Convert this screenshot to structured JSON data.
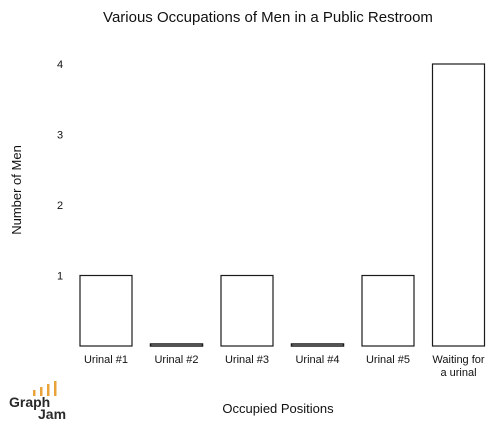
{
  "chart_data": {
    "type": "bar",
    "title": "Various Occupations of Men in a Public Restroom",
    "xlabel": "Occupied Positions",
    "ylabel": "Number of Men",
    "categories": [
      "Urinal #1",
      "Urinal #2",
      "Urinal #3",
      "Urinal #4",
      "Urinal #5",
      "Waiting for a urinal"
    ],
    "category_lines": [
      [
        "Urinal #1"
      ],
      [
        "Urinal #2"
      ],
      [
        "Urinal #3"
      ],
      [
        "Urinal #4"
      ],
      [
        "Urinal #5"
      ],
      [
        "Waiting for",
        "a urinal"
      ]
    ],
    "values": [
      1,
      0,
      1,
      0,
      1,
      4
    ],
    "ylim": [
      0,
      4
    ],
    "yticks": [
      "1",
      "2",
      "3",
      "4"
    ],
    "grid": false,
    "bar_fill": "#ffffff",
    "bar_stroke": "#1a1a1a"
  },
  "logo": {
    "text_top": "Graph",
    "text_bottom": "Jam",
    "accent_color": "#e8a33b"
  }
}
